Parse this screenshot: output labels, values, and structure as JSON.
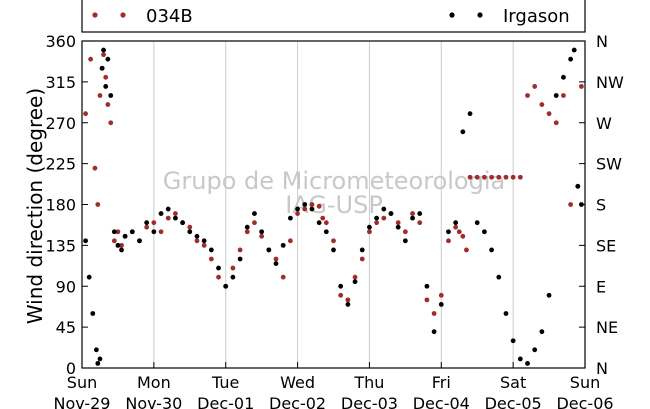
{
  "chart_data": {
    "type": "scatter",
    "ylabel": "Wind direction (degree)",
    "ylim": [
      0,
      360
    ],
    "xlim": [
      0,
      7
    ],
    "grid": "vertical",
    "legend_placement": "top",
    "y_ticks": [
      0,
      45,
      90,
      135,
      180,
      225,
      270,
      315,
      360
    ],
    "y_tick_labels": [
      "0",
      "45",
      "90",
      "135",
      "180",
      "225",
      "270",
      "315",
      "360"
    ],
    "right_ticks": [
      0,
      45,
      90,
      135,
      180,
      225,
      270,
      315,
      360
    ],
    "right_tick_labels": [
      "N",
      "NE",
      "E",
      "SE",
      "S",
      "SW",
      "W",
      "NW",
      "N"
    ],
    "x_ticks": [
      0,
      1,
      2,
      3,
      4,
      5,
      6,
      7
    ],
    "x_tick_day": [
      "Sun",
      "Mon",
      "Tue",
      "Wed",
      "Thu",
      "Fri",
      "Sat",
      "Sun"
    ],
    "x_tick_date": [
      "Nov-29",
      "Nov-30",
      "Dec-01",
      "Dec-02",
      "Dec-03",
      "Dec-04",
      "Dec-05",
      "Dec-06"
    ],
    "watermark_line1": "Grupo de Micrometeorologia",
    "watermark_line2": "IAG-USP",
    "series": [
      {
        "name": "034B",
        "color": "#a02c2c",
        "x": [
          0.05,
          0.12,
          0.18,
          0.22,
          0.25,
          0.28,
          0.3,
          0.33,
          0.36,
          0.4,
          0.45,
          0.5,
          0.55,
          0.6,
          0.7,
          0.8,
          0.9,
          1.0,
          1.1,
          1.2,
          1.3,
          1.4,
          1.5,
          1.6,
          1.7,
          1.8,
          1.9,
          2.0,
          2.1,
          2.2,
          2.3,
          2.4,
          2.5,
          2.6,
          2.7,
          2.8,
          2.9,
          3.0,
          3.1,
          3.2,
          3.3,
          3.35,
          3.4,
          3.5,
          3.6,
          3.7,
          3.8,
          3.9,
          4.0,
          4.1,
          4.2,
          4.3,
          4.4,
          4.5,
          4.6,
          4.7,
          4.8,
          4.9,
          5.0,
          5.1,
          5.2,
          5.25,
          5.3,
          5.35,
          5.4,
          5.5,
          5.6,
          5.7,
          5.8,
          5.9,
          6.0,
          6.1,
          6.2,
          6.3,
          6.4,
          6.5,
          6.6,
          6.7,
          6.8,
          6.9,
          6.95
        ],
        "y": [
          280,
          340,
          220,
          180,
          300,
          330,
          345,
          320,
          290,
          270,
          140,
          150,
          135,
          145,
          150,
          140,
          155,
          160,
          150,
          165,
          170,
          160,
          155,
          140,
          135,
          120,
          100,
          90,
          110,
          130,
          150,
          160,
          145,
          130,
          120,
          100,
          140,
          170,
          175,
          180,
          178,
          165,
          160,
          140,
          80,
          75,
          100,
          120,
          150,
          160,
          165,
          170,
          160,
          150,
          170,
          160,
          75,
          60,
          80,
          140,
          155,
          150,
          145,
          130,
          210,
          210,
          210,
          210,
          210,
          210,
          210,
          210,
          300,
          310,
          290,
          280,
          270,
          300,
          180,
          200,
          310
        ]
      },
      {
        "name": "Irgason",
        "color": "#000000",
        "x": [
          0.05,
          0.1,
          0.15,
          0.2,
          0.22,
          0.25,
          0.28,
          0.3,
          0.33,
          0.36,
          0.4,
          0.45,
          0.5,
          0.55,
          0.6,
          0.7,
          0.8,
          0.9,
          1.0,
          1.1,
          1.2,
          1.3,
          1.4,
          1.5,
          1.6,
          1.7,
          1.8,
          1.9,
          2.0,
          2.1,
          2.2,
          2.3,
          2.4,
          2.5,
          2.6,
          2.7,
          2.8,
          2.9,
          3.0,
          3.1,
          3.2,
          3.3,
          3.4,
          3.5,
          3.6,
          3.7,
          3.8,
          3.9,
          4.0,
          4.1,
          4.2,
          4.3,
          4.4,
          4.5,
          4.6,
          4.7,
          4.8,
          4.9,
          5.0,
          5.1,
          5.2,
          5.3,
          5.4,
          5.5,
          5.6,
          5.7,
          5.8,
          5.9,
          6.0,
          6.1,
          6.2,
          6.3,
          6.4,
          6.5,
          6.6,
          6.7,
          6.8,
          6.85,
          6.9,
          6.95
        ],
        "y": [
          140,
          100,
          60,
          20,
          5,
          10,
          330,
          350,
          310,
          340,
          300,
          150,
          135,
          130,
          145,
          150,
          140,
          160,
          150,
          170,
          175,
          165,
          160,
          150,
          145,
          140,
          130,
          110,
          90,
          100,
          120,
          155,
          170,
          150,
          130,
          115,
          135,
          165,
          175,
          180,
          175,
          160,
          150,
          130,
          90,
          70,
          95,
          130,
          155,
          165,
          175,
          170,
          155,
          140,
          165,
          170,
          90,
          40,
          70,
          150,
          160,
          260,
          280,
          160,
          150,
          130,
          100,
          60,
          30,
          10,
          5,
          20,
          40,
          80,
          300,
          320,
          340,
          350,
          200,
          180
        ]
      }
    ]
  }
}
